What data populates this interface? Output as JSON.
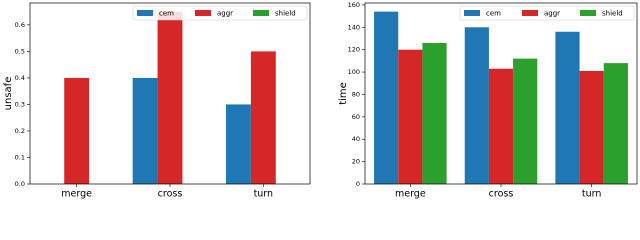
{
  "chart_data": [
    {
      "type": "bar",
      "ylabel": "unsafe",
      "categories": [
        "merge",
        "cross",
        "turn"
      ],
      "series": [
        {
          "name": "cem",
          "color": "#1f77b4",
          "values": [
            0,
            0.4,
            0.3
          ]
        },
        {
          "name": "aggr",
          "color": "#d62728",
          "values": [
            0.4,
            0.65,
            0.5
          ]
        },
        {
          "name": "shield",
          "color": "#2ca02c",
          "values": [
            0,
            0,
            0
          ]
        }
      ],
      "ylim": [
        0,
        0.6825
      ],
      "yticks": [
        {
          "value": 0,
          "label": "0.0"
        },
        0.1,
        0.2,
        0.3,
        0.4,
        0.5,
        0.6
      ],
      "legend": "upper right"
    },
    {
      "type": "bar",
      "ylabel": "time",
      "categories": [
        "merge",
        "cross",
        "turn"
      ],
      "series": [
        {
          "name": "cem",
          "color": "#1f77b4",
          "values": [
            154,
            140,
            136
          ]
        },
        {
          "name": "aggr",
          "color": "#d62728",
          "values": [
            120,
            103,
            101
          ]
        },
        {
          "name": "shield",
          "color": "#2ca02c",
          "values": [
            126,
            112,
            108
          ]
        }
      ],
      "ylim": [
        0,
        161.7
      ],
      "yticks": [
        0,
        20,
        40,
        60,
        80,
        100,
        120,
        140,
        160
      ],
      "legend": "upper right"
    }
  ]
}
